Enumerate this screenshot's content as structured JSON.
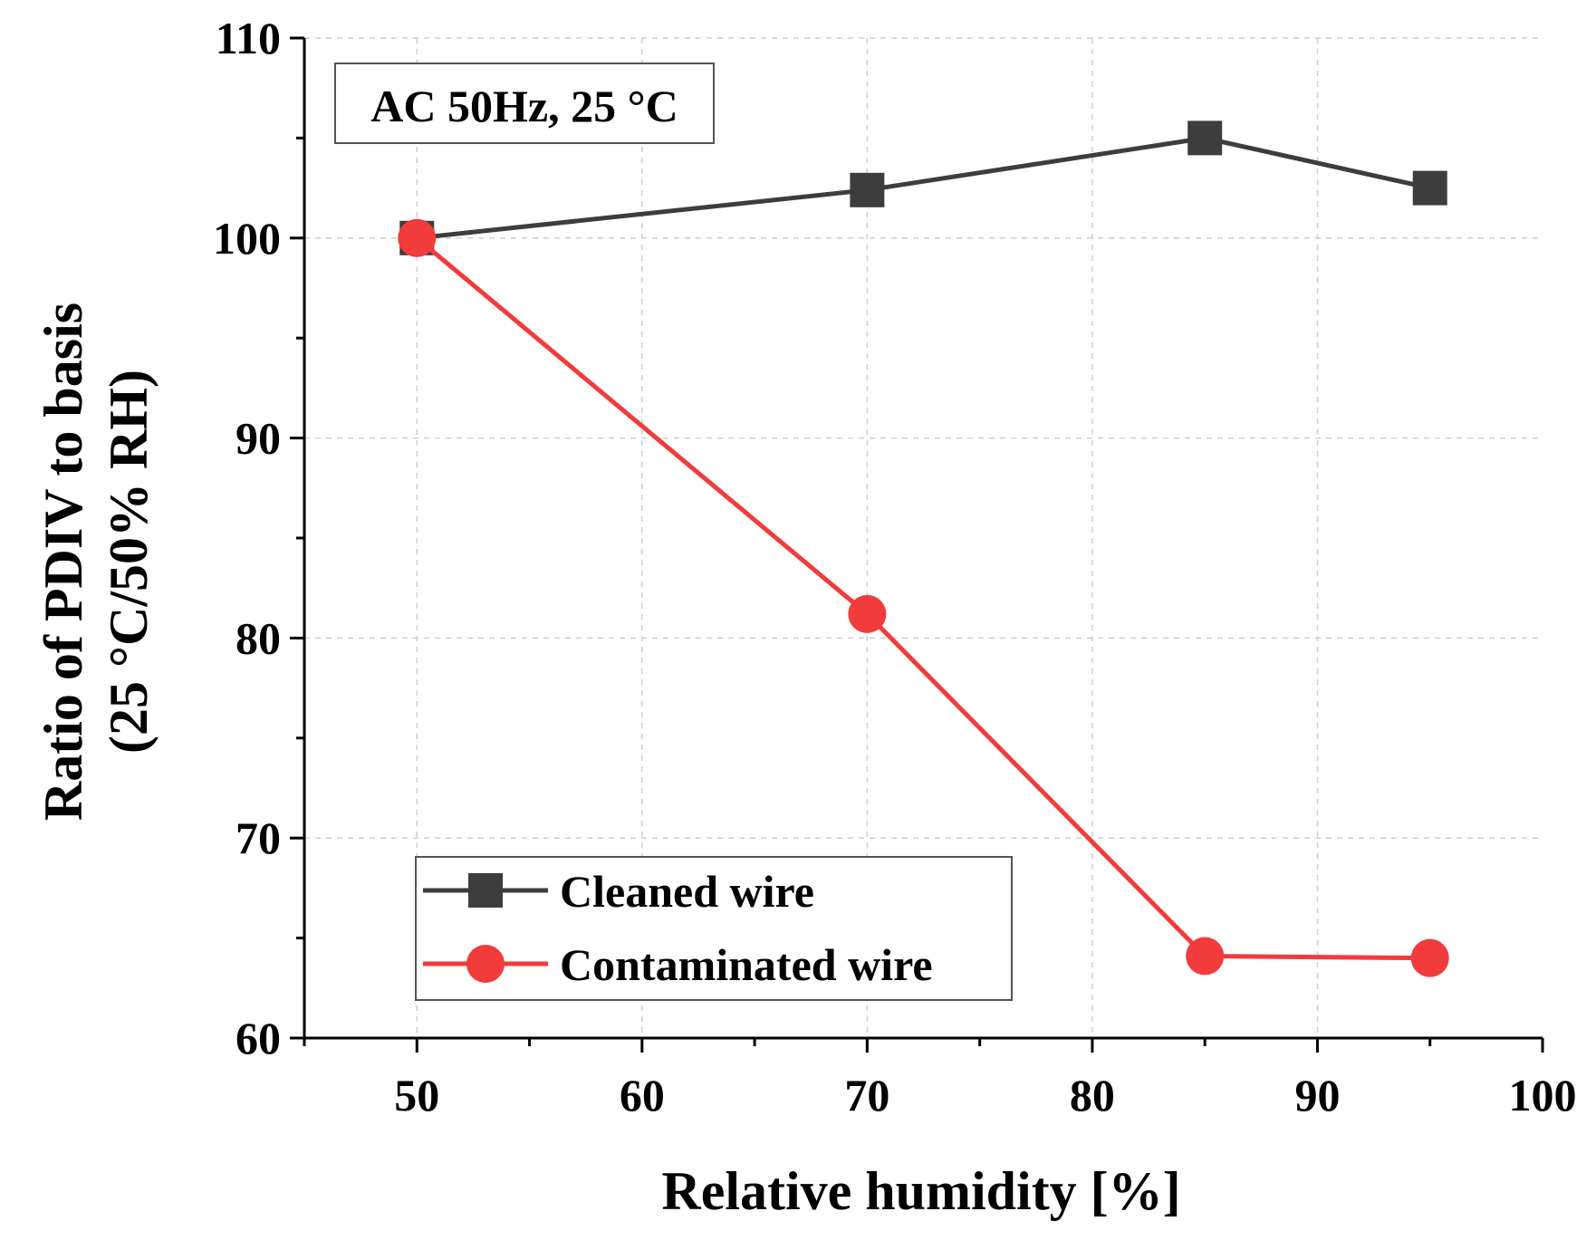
{
  "chart_data": {
    "type": "line",
    "xlabel": "Relative humidity [%]",
    "ylabel_line1": "Ratio of PDIV to basis",
    "ylabel_line2": "(25 °C/50% RH)",
    "xlim": [
      45,
      100
    ],
    "ylim": [
      60,
      110
    ],
    "x_ticks": [
      50,
      60,
      70,
      80,
      90,
      100
    ],
    "y_ticks": [
      60,
      70,
      80,
      90,
      100,
      110
    ],
    "grid": true,
    "legend_position": "bottom-left",
    "annotation": "AC 50Hz, 25 °C",
    "series": [
      {
        "name": "Cleaned wire",
        "color": "#3d3d3d",
        "marker": "square",
        "x": [
          50,
          70,
          85,
          95
        ],
        "y": [
          100,
          102.4,
          105,
          102.5
        ]
      },
      {
        "name": "Contaminated wire",
        "color": "#f23b3b",
        "marker": "circle",
        "x": [
          50,
          70,
          85,
          95
        ],
        "y": [
          100,
          81.2,
          64.1,
          64.0
        ]
      }
    ]
  }
}
